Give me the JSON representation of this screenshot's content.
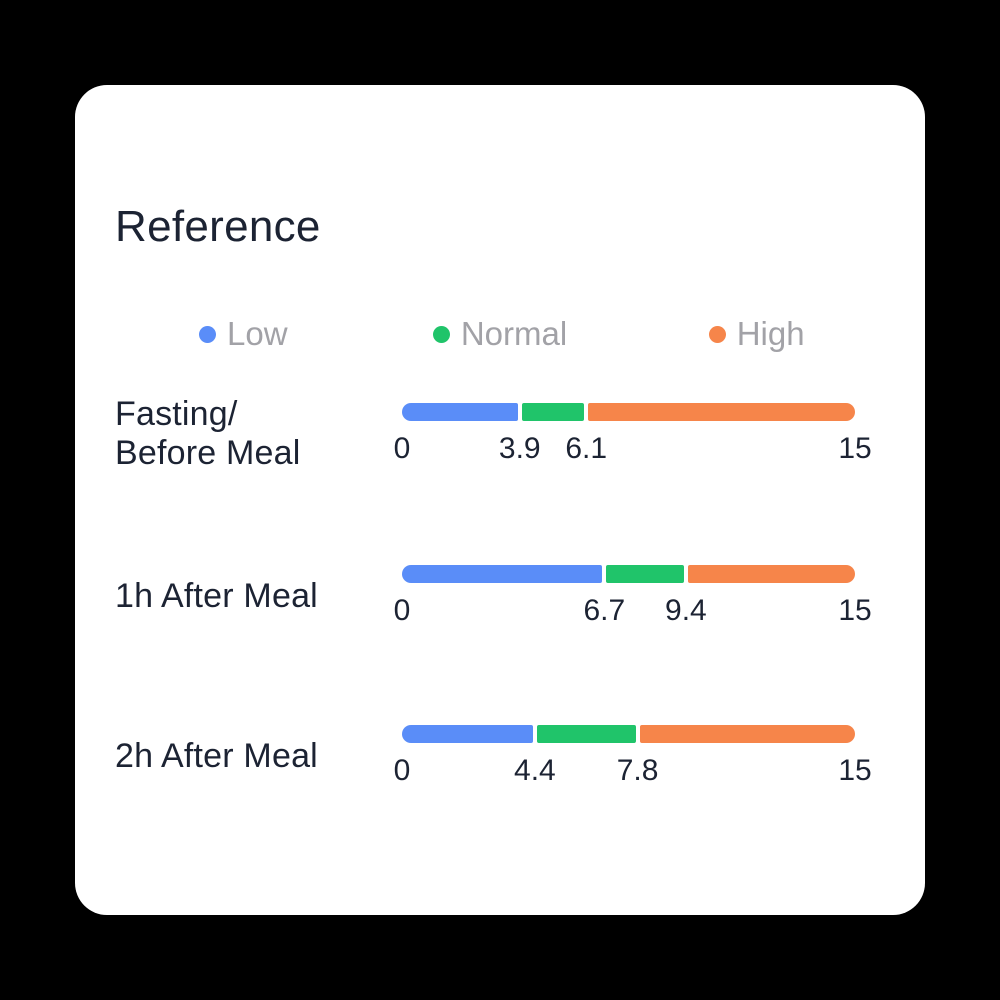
{
  "card": {
    "title": "Reference"
  },
  "legend": {
    "items": [
      {
        "name": "low",
        "label": "Low",
        "color": "#5A8DF8"
      },
      {
        "name": "normal",
        "label": "Normal",
        "color": "#20C46A"
      },
      {
        "name": "high",
        "label": "High",
        "color": "#F6854A"
      }
    ]
  },
  "chart_data": {
    "type": "bar",
    "title": "Reference",
    "legend": [
      "Low",
      "Normal",
      "High"
    ],
    "legend_position": "top",
    "axis_range": [
      0,
      15
    ],
    "rows": [
      {
        "label": "Fasting/Before Meal",
        "label_lines": [
          "Fasting/",
          "Before Meal"
        ],
        "min": 0,
        "low_max": 3.9,
        "normal_max": 6.1,
        "max": 15,
        "ticks": [
          "0",
          "3.9",
          "6.1",
          "15"
        ]
      },
      {
        "label": "1h After Meal",
        "label_lines": [
          "1h After Meal"
        ],
        "min": 0,
        "low_max": 6.7,
        "normal_max": 9.4,
        "max": 15,
        "ticks": [
          "0",
          "6.7",
          "9.4",
          "15"
        ]
      },
      {
        "label": "2h After Meal",
        "label_lines": [
          "2h After Meal"
        ],
        "min": 0,
        "low_max": 4.4,
        "normal_max": 7.8,
        "max": 15,
        "ticks": [
          "0",
          "4.4",
          "7.8",
          "15"
        ]
      }
    ]
  },
  "colors": {
    "low": "#5A8DF8",
    "normal": "#20C46A",
    "high": "#F6854A",
    "page_bg": "#000000",
    "card_bg": "#FFFFFF",
    "text_dark": "#1C2333",
    "legend_text": "#A2A2A7"
  }
}
